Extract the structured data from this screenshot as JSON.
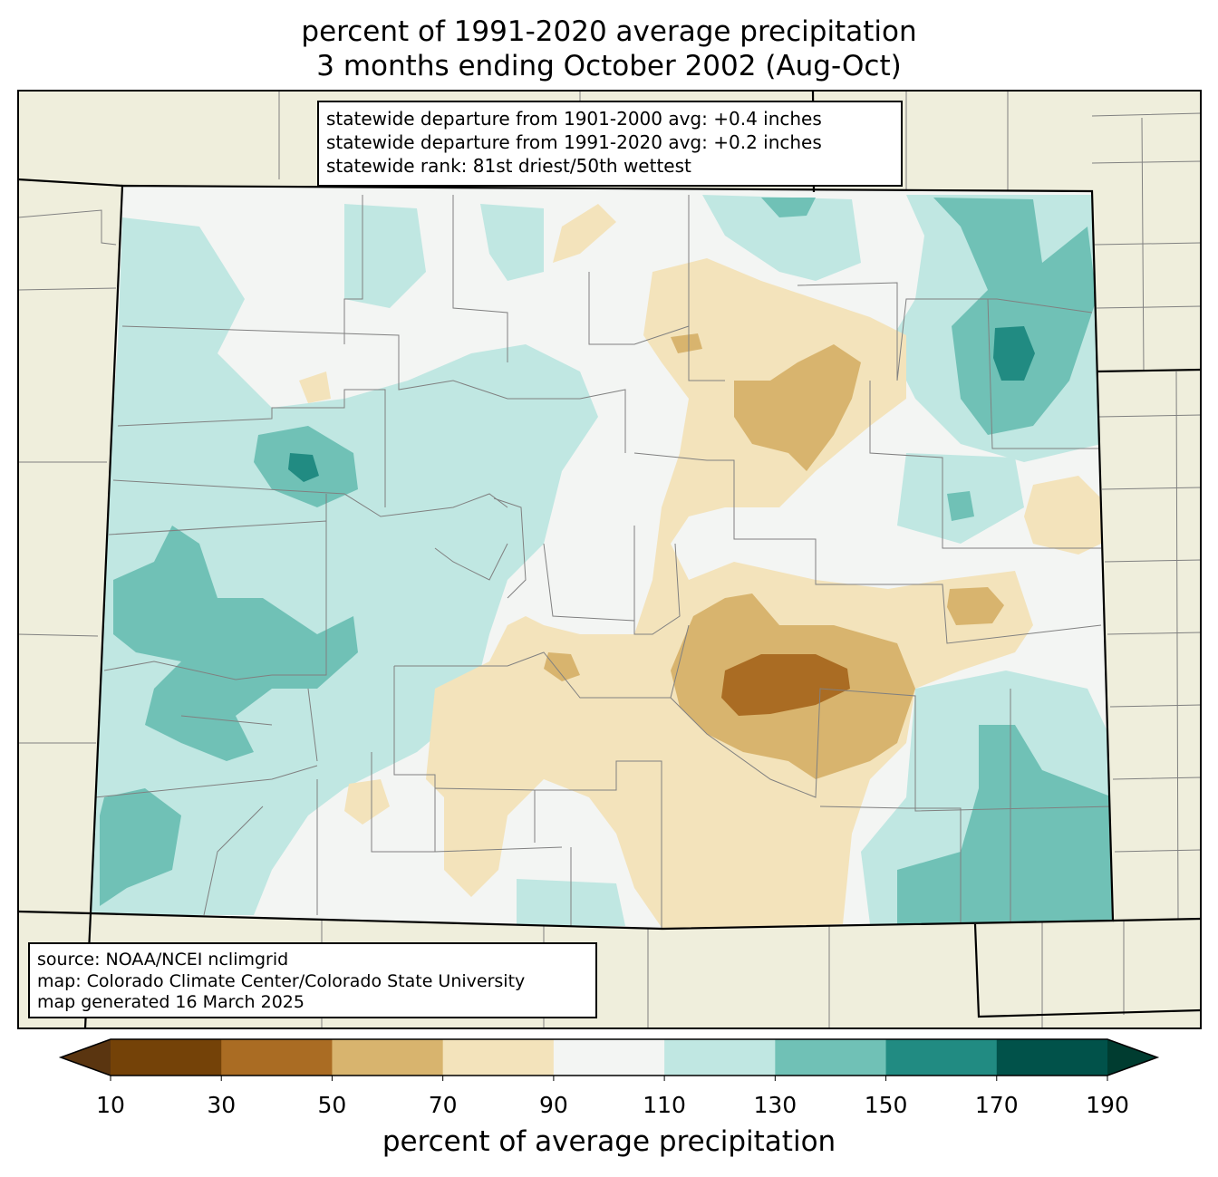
{
  "title": {
    "line1": "percent of 1991-2020 average precipitation",
    "line2": "3 months ending October 2002 (Aug-Oct)"
  },
  "stats": {
    "line1": "statewide departure from 1901-2000 avg: +0.4 inches",
    "line2": "statewide departure from 1991-2020 avg: +0.2 inches",
    "line3": "statewide rank: 81st driest/50th wettest"
  },
  "source": {
    "line1": "source: NOAA/NCEI nclimgrid",
    "line2": "map: Colorado Climate Center/Colorado State University",
    "line3": "map generated 16 March 2025"
  },
  "colorbar": {
    "label": "percent of average precipitation",
    "ticks": [
      "10",
      "30",
      "50",
      "70",
      "90",
      "110",
      "130",
      "150",
      "170",
      "190"
    ],
    "colors": [
      "#5a3510",
      "#744208",
      "#aa6c23",
      "#d8b46e",
      "#f3e3bb",
      "#f3f5f3",
      "#c0e7e2",
      "#70c1b6",
      "#218b82",
      "#01524a",
      "#003c30"
    ]
  },
  "map_colors": {
    "background": "#efeedc",
    "state_border": "#000000",
    "county_lines": "#808080"
  }
}
